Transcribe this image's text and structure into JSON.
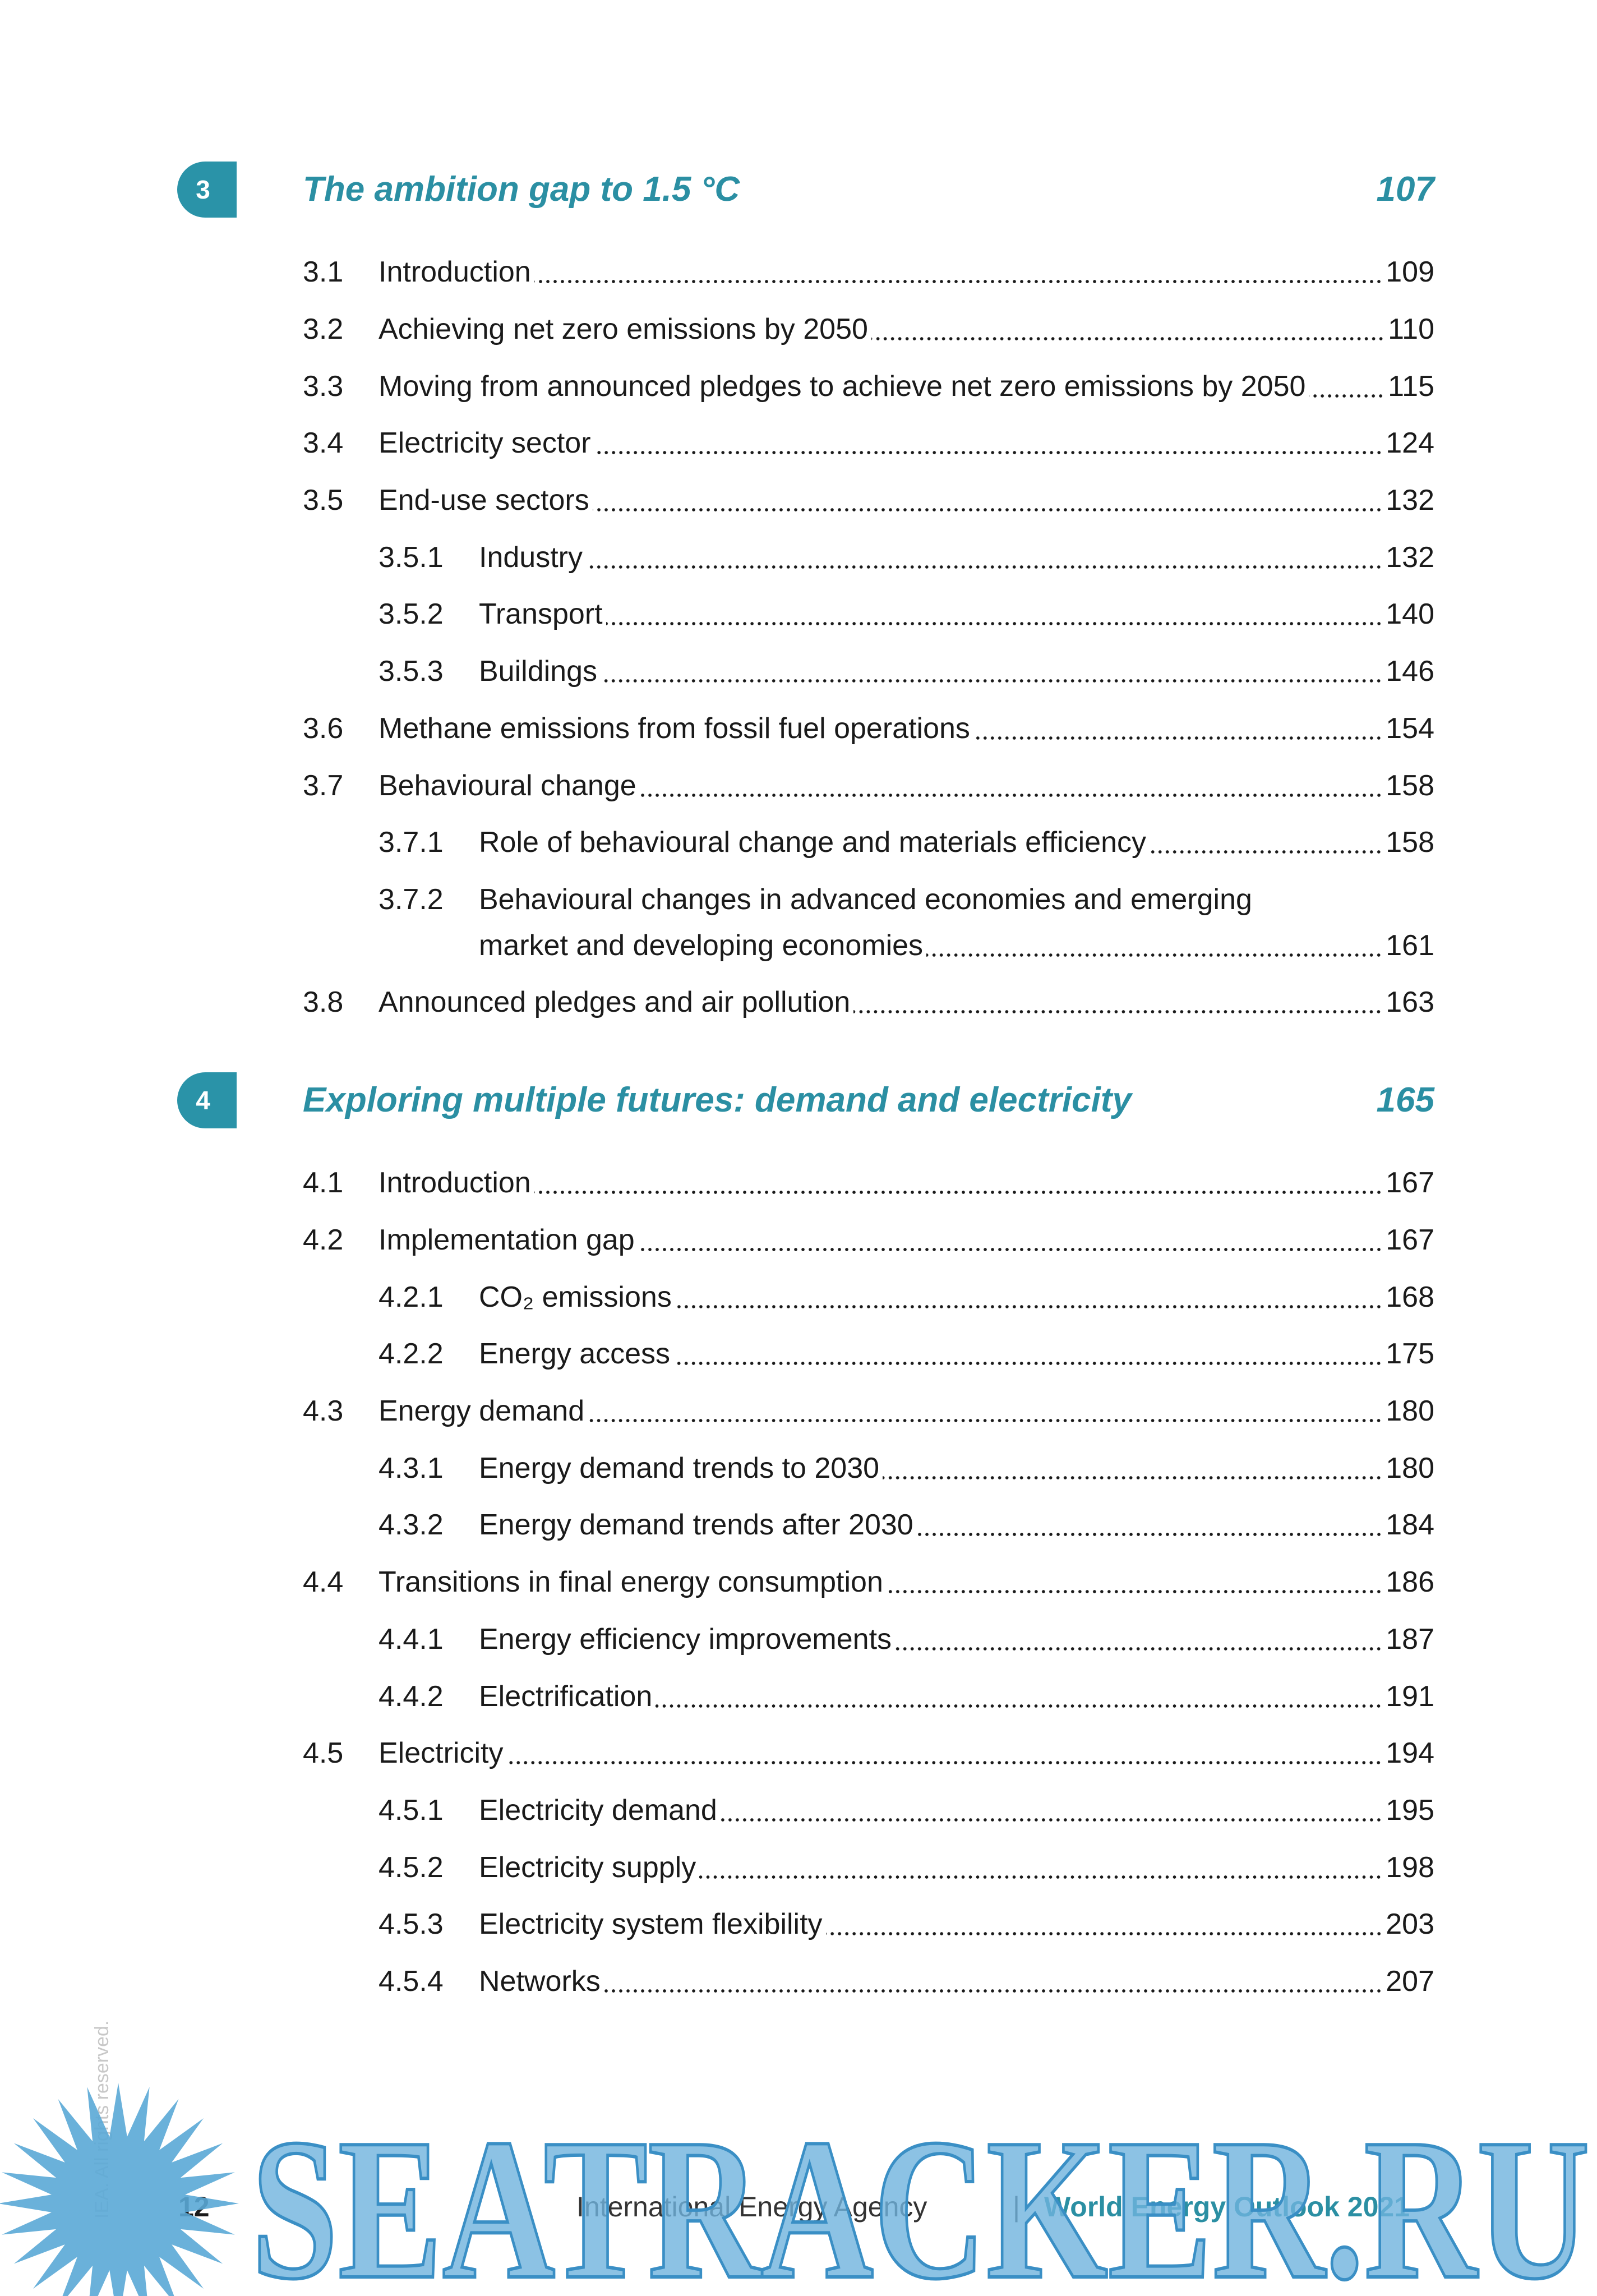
{
  "chapters": [
    {
      "number": "3",
      "title": "The ambition gap to 1.5 °C",
      "page": "107",
      "entries": [
        {
          "number": "3.1",
          "title": "Introduction",
          "page": "109"
        },
        {
          "number": "3.2",
          "title": "Achieving net zero emissions by 2050",
          "page": "110"
        },
        {
          "number": "3.3",
          "title": "Moving from announced pledges to achieve net zero emissions by 2050",
          "page": "115"
        },
        {
          "number": "3.4",
          "title": "Electricity sector",
          "page": "124"
        },
        {
          "number": "3.5",
          "title": "End-use sectors",
          "page": "132"
        },
        {
          "number": "3.5.1",
          "title": "Industry",
          "page": "132"
        },
        {
          "number": "3.5.2",
          "title": "Transport",
          "page": "140"
        },
        {
          "number": "3.5.3",
          "title": "Buildings",
          "page": "146"
        },
        {
          "number": "3.6",
          "title": "Methane emissions from fossil fuel operations",
          "page": "154"
        },
        {
          "number": "3.7",
          "title": "Behavioural change",
          "page": "158"
        },
        {
          "number": "3.7.1",
          "title": "Role of behavioural change and materials efficiency",
          "page": "158"
        },
        {
          "number": "3.7.2",
          "title": "Behavioural changes in advanced economies and emerging",
          "title_continued": "market and developing economies",
          "page": "161"
        },
        {
          "number": "3.8",
          "title": "Announced pledges and air pollution",
          "page": "163"
        }
      ]
    },
    {
      "number": "4",
      "title": "Exploring multiple futures: demand and electricity",
      "page": "165",
      "entries": [
        {
          "number": "4.1",
          "title": "Introduction",
          "page": "167"
        },
        {
          "number": "4.2",
          "title": "Implementation gap",
          "page": "167"
        },
        {
          "number": "4.2.1",
          "title": "CO₂ emissions",
          "page": "168"
        },
        {
          "number": "4.2.2",
          "title": "Energy access",
          "page": "175"
        },
        {
          "number": "4.3",
          "title": "Energy demand",
          "page": "180"
        },
        {
          "number": "4.3.1",
          "title": "Energy demand trends to 2030",
          "page": "180"
        },
        {
          "number": "4.3.2",
          "title": "Energy demand trends after 2030",
          "page": "184"
        },
        {
          "number": "4.4",
          "title": "Transitions in final energy consumption",
          "page": "186"
        },
        {
          "number": "4.4.1",
          "title": "Energy efficiency improvements",
          "page": "187"
        },
        {
          "number": "4.4.2",
          "title": "Electrification",
          "page": "191"
        },
        {
          "number": "4.5",
          "title": "Electricity",
          "page": "194"
        },
        {
          "number": "4.5.1",
          "title": "Electricity demand",
          "page": "195"
        },
        {
          "number": "4.5.2",
          "title": "Electricity supply",
          "page": "198"
        },
        {
          "number": "4.5.3",
          "title": "Electricity system flexibility",
          "page": "203"
        },
        {
          "number": "4.5.4",
          "title": "Networks",
          "page": "207"
        }
      ]
    }
  ],
  "footer": {
    "page_number": "12",
    "publisher": "International Energy Agency",
    "separator": "|",
    "report": "World Energy Outlook 2021"
  },
  "side_note": "IEA. All rights reserved.",
  "watermark": "SEATRACKER.RU"
}
